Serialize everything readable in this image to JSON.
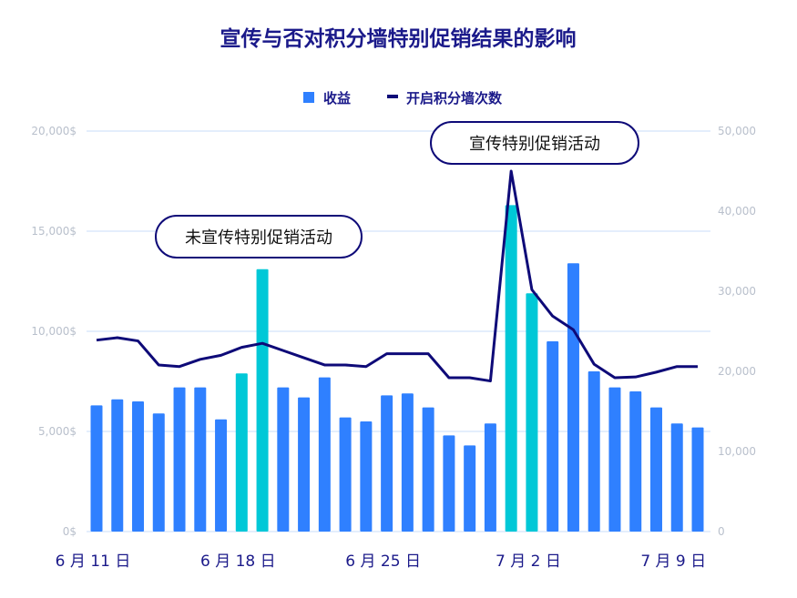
{
  "chart_data": {
    "type": "bar+line",
    "title": "宣传与否对积分墙特别促销结果的影响",
    "legend": [
      {
        "label": "收益",
        "kind": "bar"
      },
      {
        "label": "开启积分墙次数",
        "kind": "line"
      }
    ],
    "legend_position": "top-center",
    "x": [
      "6/11",
      "6/12",
      "6/13",
      "6/14",
      "6/15",
      "6/16",
      "6/17",
      "6/18",
      "6/19",
      "6/20",
      "6/21",
      "6/22",
      "6/23",
      "6/24",
      "6/25",
      "6/26",
      "6/27",
      "6/28",
      "6/29",
      "6/30",
      "7/1",
      "7/2",
      "7/3",
      "7/4",
      "7/5",
      "7/6",
      "7/7",
      "7/8",
      "7/9",
      "7/10"
    ],
    "x_tick_labels": [
      {
        "index": 0,
        "label": "6 月 11 日"
      },
      {
        "index": 7,
        "label": "6 月 18 日"
      },
      {
        "index": 14,
        "label": "6 月 25 日"
      },
      {
        "index": 21,
        "label": "7 月 2 日"
      },
      {
        "index": 28,
        "label": "7 月 9 日"
      }
    ],
    "series": [
      {
        "name": "收益",
        "type": "bar",
        "axis": "left",
        "values": [
          6300,
          6600,
          6500,
          5900,
          7200,
          7200,
          5600,
          7900,
          13100,
          7200,
          6700,
          7700,
          5700,
          5500,
          6800,
          6900,
          6200,
          4800,
          4300,
          5400,
          16300,
          11900,
          9500,
          13400,
          8000,
          7200,
          7000,
          6200,
          5400,
          5200
        ],
        "highlight": [
          7,
          8,
          20,
          21
        ]
      },
      {
        "name": "开启积分墙次数",
        "type": "line",
        "axis": "right",
        "values": [
          23900,
          24200,
          23800,
          20800,
          20600,
          21500,
          22000,
          23000,
          23500,
          22600,
          21700,
          20800,
          20800,
          20600,
          22200,
          22200,
          22200,
          19200,
          19200,
          18800,
          45000,
          30200,
          26900,
          25200,
          20900,
          19200,
          19300,
          19900,
          20600,
          20600
        ]
      }
    ],
    "y_left": {
      "range": [
        0,
        20000
      ],
      "ticks": [
        "0$",
        "5,000$",
        "10,000$",
        "15,000$",
        "20,000$"
      ]
    },
    "y_right": {
      "range": [
        0,
        50000
      ],
      "ticks": [
        "0",
        "10,000",
        "20,000",
        "30,000",
        "40,000",
        "50,000"
      ]
    },
    "grid": true,
    "annotations": [
      {
        "text": "未宣传特别促销活动",
        "index": 8
      },
      {
        "text": "宣传特别促销活动",
        "index": 20
      }
    ],
    "colors": {
      "bar": "#2f80ff",
      "highlight": "#00c8d7",
      "line": "#0e0a78",
      "title": "#1b1a8a",
      "grid": "#dce8fb",
      "tick": "#b9c0cc"
    }
  }
}
